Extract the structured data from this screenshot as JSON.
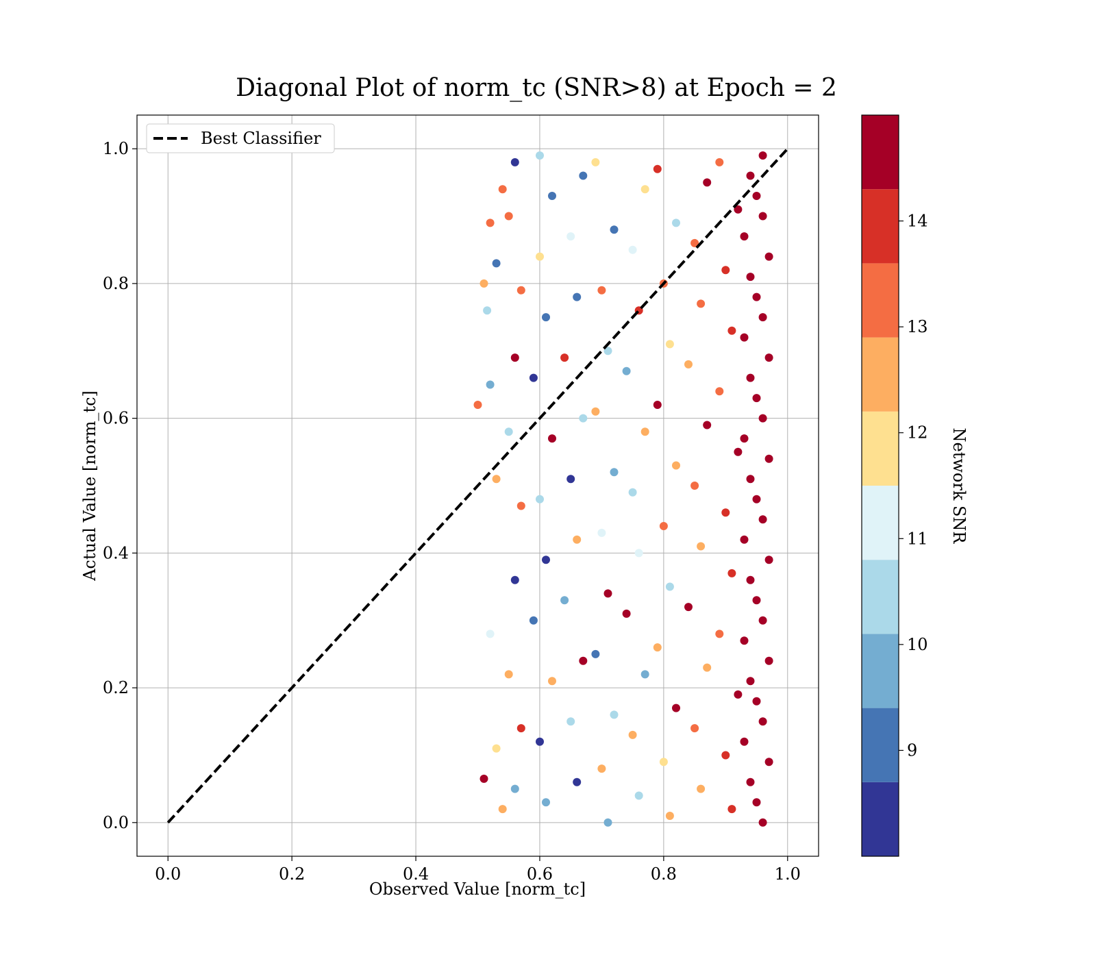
{
  "chart_data": {
    "type": "scatter",
    "title": "Diagonal Plot of norm_tc (SNR>8) at Epoch = 2",
    "xlabel": "Observed Value [norm_tc]",
    "ylabel": "Actual Value [norm_tc]",
    "xlim": [
      -0.05,
      1.05
    ],
    "ylim": [
      -0.05,
      1.05
    ],
    "x_ticks": [
      "0.0",
      "0.2",
      "0.4",
      "0.6",
      "0.8",
      "1.0"
    ],
    "y_ticks": [
      "0.0",
      "0.2",
      "0.4",
      "0.6",
      "0.8",
      "1.0"
    ],
    "grid": true,
    "legend": {
      "placement": "top-left",
      "entries": [
        "Best Classifier"
      ]
    },
    "reference_line": {
      "label": "Best Classifier",
      "style": "dashed",
      "color": "#000000",
      "x": [
        0.0,
        1.0
      ],
      "y": [
        0.0,
        1.0
      ]
    },
    "colorbar": {
      "label": "Network SNR",
      "range": [
        8,
        15
      ],
      "tick_values": [
        9,
        10,
        11,
        12,
        13,
        14
      ],
      "tick_labels": [
        "9",
        "10",
        "11",
        "12",
        "13",
        "14"
      ],
      "bands": [
        {
          "from": 8.0,
          "to": 8.7,
          "color": "#313695"
        },
        {
          "from": 8.7,
          "to": 9.4,
          "color": "#4575b4"
        },
        {
          "from": 9.4,
          "to": 10.1,
          "color": "#74add1"
        },
        {
          "from": 10.1,
          "to": 10.8,
          "color": "#abd9e9"
        },
        {
          "from": 10.8,
          "to": 11.5,
          "color": "#e0f3f8"
        },
        {
          "from": 11.5,
          "to": 12.2,
          "color": "#fee090"
        },
        {
          "from": 12.2,
          "to": 12.9,
          "color": "#fdae61"
        },
        {
          "from": 12.9,
          "to": 13.6,
          "color": "#f46d43"
        },
        {
          "from": 13.6,
          "to": 14.3,
          "color": "#d73027"
        },
        {
          "from": 14.3,
          "to": 15.0,
          "color": "#a50026"
        }
      ]
    },
    "series": [
      {
        "color_by": "Network SNR",
        "points": [
          {
            "x": 0.96,
            "y": 0.0,
            "snr": 14.8
          },
          {
            "x": 0.95,
            "y": 0.03,
            "snr": 14.9
          },
          {
            "x": 0.94,
            "y": 0.06,
            "snr": 14.7
          },
          {
            "x": 0.97,
            "y": 0.09,
            "snr": 14.9
          },
          {
            "x": 0.93,
            "y": 0.12,
            "snr": 14.6
          },
          {
            "x": 0.96,
            "y": 0.15,
            "snr": 14.9
          },
          {
            "x": 0.95,
            "y": 0.18,
            "snr": 14.8
          },
          {
            "x": 0.94,
            "y": 0.21,
            "snr": 14.7
          },
          {
            "x": 0.97,
            "y": 0.24,
            "snr": 14.9
          },
          {
            "x": 0.93,
            "y": 0.27,
            "snr": 14.5
          },
          {
            "x": 0.96,
            "y": 0.3,
            "snr": 14.9
          },
          {
            "x": 0.95,
            "y": 0.33,
            "snr": 14.8
          },
          {
            "x": 0.94,
            "y": 0.36,
            "snr": 14.7
          },
          {
            "x": 0.97,
            "y": 0.39,
            "snr": 14.9
          },
          {
            "x": 0.93,
            "y": 0.42,
            "snr": 14.6
          },
          {
            "x": 0.96,
            "y": 0.45,
            "snr": 14.9
          },
          {
            "x": 0.95,
            "y": 0.48,
            "snr": 14.8
          },
          {
            "x": 0.94,
            "y": 0.51,
            "snr": 14.7
          },
          {
            "x": 0.97,
            "y": 0.54,
            "snr": 14.9
          },
          {
            "x": 0.93,
            "y": 0.57,
            "snr": 14.5
          },
          {
            "x": 0.96,
            "y": 0.6,
            "snr": 14.9
          },
          {
            "x": 0.95,
            "y": 0.63,
            "snr": 14.8
          },
          {
            "x": 0.94,
            "y": 0.66,
            "snr": 14.7
          },
          {
            "x": 0.97,
            "y": 0.69,
            "snr": 14.9
          },
          {
            "x": 0.93,
            "y": 0.72,
            "snr": 14.6
          },
          {
            "x": 0.96,
            "y": 0.75,
            "snr": 14.9
          },
          {
            "x": 0.95,
            "y": 0.78,
            "snr": 14.8
          },
          {
            "x": 0.94,
            "y": 0.81,
            "snr": 14.7
          },
          {
            "x": 0.97,
            "y": 0.84,
            "snr": 14.9
          },
          {
            "x": 0.93,
            "y": 0.87,
            "snr": 14.5
          },
          {
            "x": 0.96,
            "y": 0.9,
            "snr": 14.9
          },
          {
            "x": 0.95,
            "y": 0.93,
            "snr": 14.8
          },
          {
            "x": 0.94,
            "y": 0.96,
            "snr": 14.7
          },
          {
            "x": 0.96,
            "y": 0.99,
            "snr": 14.9
          },
          {
            "x": 0.91,
            "y": 0.02,
            "snr": 14.1
          },
          {
            "x": 0.9,
            "y": 0.1,
            "snr": 13.6
          },
          {
            "x": 0.92,
            "y": 0.19,
            "snr": 14.4
          },
          {
            "x": 0.89,
            "y": 0.28,
            "snr": 13.2
          },
          {
            "x": 0.91,
            "y": 0.37,
            "snr": 14.0
          },
          {
            "x": 0.9,
            "y": 0.46,
            "snr": 13.7
          },
          {
            "x": 0.92,
            "y": 0.55,
            "snr": 14.3
          },
          {
            "x": 0.89,
            "y": 0.64,
            "snr": 13.1
          },
          {
            "x": 0.91,
            "y": 0.73,
            "snr": 14.2
          },
          {
            "x": 0.9,
            "y": 0.82,
            "snr": 13.8
          },
          {
            "x": 0.92,
            "y": 0.91,
            "snr": 14.4
          },
          {
            "x": 0.89,
            "y": 0.98,
            "snr": 13.3
          },
          {
            "x": 0.86,
            "y": 0.05,
            "snr": 12.8
          },
          {
            "x": 0.85,
            "y": 0.14,
            "snr": 13.4
          },
          {
            "x": 0.87,
            "y": 0.23,
            "snr": 12.5
          },
          {
            "x": 0.84,
            "y": 0.32,
            "snr": 14.6
          },
          {
            "x": 0.86,
            "y": 0.41,
            "snr": 12.3
          },
          {
            "x": 0.85,
            "y": 0.5,
            "snr": 13.0
          },
          {
            "x": 0.87,
            "y": 0.59,
            "snr": 14.8
          },
          {
            "x": 0.84,
            "y": 0.68,
            "snr": 12.6
          },
          {
            "x": 0.86,
            "y": 0.77,
            "snr": 13.5
          },
          {
            "x": 0.85,
            "y": 0.86,
            "snr": 12.9
          },
          {
            "x": 0.87,
            "y": 0.95,
            "snr": 14.7
          },
          {
            "x": 0.81,
            "y": 0.01,
            "snr": 12.4
          },
          {
            "x": 0.8,
            "y": 0.09,
            "snr": 11.9
          },
          {
            "x": 0.82,
            "y": 0.17,
            "snr": 14.9
          },
          {
            "x": 0.79,
            "y": 0.26,
            "snr": 12.7
          },
          {
            "x": 0.81,
            "y": 0.35,
            "snr": 10.6
          },
          {
            "x": 0.8,
            "y": 0.44,
            "snr": 13.1
          },
          {
            "x": 0.82,
            "y": 0.53,
            "snr": 12.2
          },
          {
            "x": 0.79,
            "y": 0.62,
            "snr": 14.8
          },
          {
            "x": 0.81,
            "y": 0.71,
            "snr": 11.8
          },
          {
            "x": 0.8,
            "y": 0.8,
            "snr": 12.9
          },
          {
            "x": 0.82,
            "y": 0.89,
            "snr": 10.4
          },
          {
            "x": 0.79,
            "y": 0.97,
            "snr": 13.6
          },
          {
            "x": 0.76,
            "y": 0.04,
            "snr": 10.5
          },
          {
            "x": 0.75,
            "y": 0.13,
            "snr": 12.3
          },
          {
            "x": 0.77,
            "y": 0.22,
            "snr": 9.8
          },
          {
            "x": 0.74,
            "y": 0.31,
            "snr": 14.9
          },
          {
            "x": 0.76,
            "y": 0.4,
            "snr": 11.2
          },
          {
            "x": 0.75,
            "y": 0.49,
            "snr": 10.3
          },
          {
            "x": 0.77,
            "y": 0.58,
            "snr": 12.6
          },
          {
            "x": 0.74,
            "y": 0.67,
            "snr": 9.4
          },
          {
            "x": 0.76,
            "y": 0.76,
            "snr": 13.8
          },
          {
            "x": 0.75,
            "y": 0.85,
            "snr": 10.9
          },
          {
            "x": 0.77,
            "y": 0.94,
            "snr": 12.1
          },
          {
            "x": 0.71,
            "y": 0.0,
            "snr": 9.7
          },
          {
            "x": 0.7,
            "y": 0.08,
            "snr": 12.5
          },
          {
            "x": 0.72,
            "y": 0.16,
            "snr": 10.2
          },
          {
            "x": 0.69,
            "y": 0.25,
            "snr": 8.9
          },
          {
            "x": 0.71,
            "y": 0.34,
            "snr": 14.7
          },
          {
            "x": 0.7,
            "y": 0.43,
            "snr": 10.8
          },
          {
            "x": 0.72,
            "y": 0.52,
            "snr": 9.5
          },
          {
            "x": 0.69,
            "y": 0.61,
            "snr": 12.2
          },
          {
            "x": 0.71,
            "y": 0.7,
            "snr": 10.1
          },
          {
            "x": 0.7,
            "y": 0.79,
            "snr": 13.5
          },
          {
            "x": 0.72,
            "y": 0.88,
            "snr": 9.2
          },
          {
            "x": 0.69,
            "y": 0.98,
            "snr": 11.6
          },
          {
            "x": 0.66,
            "y": 0.06,
            "snr": 8.5
          },
          {
            "x": 0.65,
            "y": 0.15,
            "snr": 10.7
          },
          {
            "x": 0.67,
            "y": 0.24,
            "snr": 14.8
          },
          {
            "x": 0.64,
            "y": 0.33,
            "snr": 9.6
          },
          {
            "x": 0.66,
            "y": 0.42,
            "snr": 12.4
          },
          {
            "x": 0.65,
            "y": 0.51,
            "snr": 8.3
          },
          {
            "x": 0.67,
            "y": 0.6,
            "snr": 10.5
          },
          {
            "x": 0.64,
            "y": 0.69,
            "snr": 13.9
          },
          {
            "x": 0.66,
            "y": 0.78,
            "snr": 9.1
          },
          {
            "x": 0.65,
            "y": 0.87,
            "snr": 11.3
          },
          {
            "x": 0.67,
            "y": 0.96,
            "snr": 8.7
          },
          {
            "x": 0.61,
            "y": 0.03,
            "snr": 9.9
          },
          {
            "x": 0.6,
            "y": 0.12,
            "snr": 8.2
          },
          {
            "x": 0.62,
            "y": 0.21,
            "snr": 12.8
          },
          {
            "x": 0.59,
            "y": 0.3,
            "snr": 9.3
          },
          {
            "x": 0.61,
            "y": 0.39,
            "snr": 8.4
          },
          {
            "x": 0.6,
            "y": 0.48,
            "snr": 10.2
          },
          {
            "x": 0.62,
            "y": 0.57,
            "snr": 14.6
          },
          {
            "x": 0.59,
            "y": 0.66,
            "snr": 8.6
          },
          {
            "x": 0.61,
            "y": 0.75,
            "snr": 9.0
          },
          {
            "x": 0.6,
            "y": 0.84,
            "snr": 11.9
          },
          {
            "x": 0.62,
            "y": 0.93,
            "snr": 8.8
          },
          {
            "x": 0.6,
            "y": 0.99,
            "snr": 10.3
          },
          {
            "x": 0.56,
            "y": 0.05,
            "snr": 9.4
          },
          {
            "x": 0.57,
            "y": 0.14,
            "snr": 13.7
          },
          {
            "x": 0.55,
            "y": 0.22,
            "snr": 12.3
          },
          {
            "x": 0.56,
            "y": 0.36,
            "snr": 8.4
          },
          {
            "x": 0.57,
            "y": 0.47,
            "snr": 13.3
          },
          {
            "x": 0.55,
            "y": 0.58,
            "snr": 10.2
          },
          {
            "x": 0.56,
            "y": 0.69,
            "snr": 14.7
          },
          {
            "x": 0.57,
            "y": 0.79,
            "snr": 13.1
          },
          {
            "x": 0.55,
            "y": 0.9,
            "snr": 13.4
          },
          {
            "x": 0.56,
            "y": 0.98,
            "snr": 8.3
          },
          {
            "x": 0.51,
            "y": 0.065,
            "snr": 14.8
          },
          {
            "x": 0.5,
            "y": 0.62,
            "snr": 13.2
          },
          {
            "x": 0.51,
            "y": 0.8,
            "snr": 12.6
          },
          {
            "x": 0.52,
            "y": 0.89,
            "snr": 13.5
          },
          {
            "x": 0.515,
            "y": 0.76,
            "snr": 10.5
          },
          {
            "x": 0.52,
            "y": 0.65,
            "snr": 9.6
          },
          {
            "x": 0.52,
            "y": 0.28,
            "snr": 11.1
          },
          {
            "x": 0.53,
            "y": 0.11,
            "snr": 12.0
          },
          {
            "x": 0.54,
            "y": 0.02,
            "snr": 12.3
          },
          {
            "x": 0.54,
            "y": 0.94,
            "snr": 13.0
          },
          {
            "x": 0.53,
            "y": 0.51,
            "snr": 12.4
          },
          {
            "x": 0.53,
            "y": 0.83,
            "snr": 9.2
          }
        ]
      }
    ]
  }
}
